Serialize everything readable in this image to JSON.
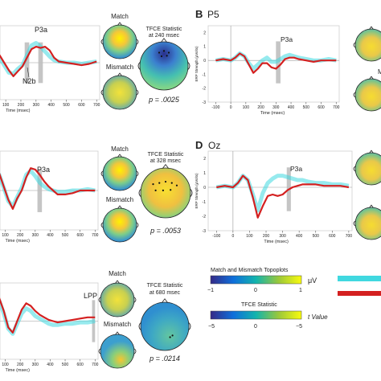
{
  "colors": {
    "match": "#40d8e0",
    "mismatch": "#d42020",
    "axis": "#555555",
    "text": "#222222",
    "gray_window": "#bbbbbb",
    "head_outline": "#222222"
  },
  "labels": {
    "match": "Match",
    "mismatch": "Mismatch",
    "p3a": "P3a",
    "n2b": "N2b",
    "lpp": "LPP",
    "x_label": "Time (msec)",
    "y_label": "ERP Strength (μVolts)",
    "panel_b_letter": "B",
    "panel_b_channel": "P5",
    "panel_d_letter": "D",
    "panel_d_channel": "Oz",
    "tfce_title_1": "TFCE Statistic",
    "tfce_time_1": "at 240 msec",
    "tfce_p_1": "p = .0025",
    "tfce_title_2": "TFCE Statistic",
    "tfce_time_2": "at 328 msec",
    "tfce_p_2": "p = .0053",
    "tfce_title_3": "TFCE Statistic",
    "tfce_time_3": "at 680 msec",
    "tfce_p_3": "p = .0214"
  },
  "legend": {
    "topo_title": "Match and Mismatch Topoplots",
    "topo_ticks": [
      "−1",
      "0",
      "1"
    ],
    "topo_unit": "μV",
    "tfce_title": "TFCE Statistic",
    "tfce_ticks": [
      "−5",
      "0",
      "−5"
    ],
    "tfce_unit": "t Value"
  },
  "chart_data": [
    {
      "type": "line",
      "panel": "A (cropped)",
      "x": [
        -100,
        -50,
        0,
        30,
        60,
        90,
        120,
        150,
        180,
        210,
        240,
        270,
        300,
        330,
        360,
        390,
        420,
        450,
        500,
        550,
        600,
        650,
        700
      ],
      "series": [
        {
          "name": "Match",
          "values": [
            0.0,
            0.1,
            0.0,
            0.3,
            0.4,
            -0.2,
            -0.8,
            -0.9,
            -0.5,
            -0.2,
            0.6,
            1.4,
            1.6,
            1.3,
            0.9,
            0.5,
            0.2,
            0.1,
            0.0,
            0.0,
            -0.1,
            0.0,
            0.1
          ]
        },
        {
          "name": "Mismatch",
          "values": [
            0.0,
            0.1,
            0.0,
            0.4,
            0.6,
            0.0,
            -0.6,
            -1.1,
            -0.7,
            -0.3,
            0.4,
            1.1,
            1.3,
            1.2,
            1.3,
            1.0,
            0.4,
            0.1,
            0.0,
            -0.1,
            -0.2,
            -0.1,
            0.1
          ]
        }
      ],
      "x_ticks": [
        100,
        200,
        300,
        400,
        500,
        600,
        700
      ],
      "windows": [
        [
          225,
          255
        ],
        [
          315,
          345
        ]
      ],
      "xlim": [
        -150,
        720
      ],
      "ylim": [
        -3,
        3
      ]
    },
    {
      "type": "line",
      "panel": "B",
      "x": [
        -100,
        -50,
        0,
        30,
        60,
        90,
        120,
        150,
        180,
        210,
        240,
        270,
        300,
        330,
        360,
        390,
        420,
        450,
        500,
        550,
        600,
        650,
        700
      ],
      "series": [
        {
          "name": "Match",
          "values": [
            0.0,
            0.1,
            0.0,
            0.2,
            0.5,
            0.3,
            -0.2,
            -0.6,
            -0.3,
            0.0,
            0.2,
            -0.1,
            -0.1,
            0.1,
            0.3,
            0.4,
            0.3,
            0.2,
            0.1,
            0.0,
            0.0,
            0.1,
            0.0
          ]
        },
        {
          "name": "Mismatch",
          "values": [
            0.0,
            0.1,
            0.0,
            0.2,
            0.5,
            0.3,
            -0.3,
            -0.9,
            -0.6,
            -0.2,
            -0.2,
            -0.5,
            -0.6,
            -0.3,
            0.1,
            0.2,
            0.2,
            0.1,
            0.0,
            -0.1,
            0.0,
            0.0,
            0.0
          ]
        }
      ],
      "x_ticks": [
        -100,
        0,
        100,
        200,
        300,
        400,
        500,
        600,
        700
      ],
      "y_ticks": [
        -3,
        -2,
        -1,
        0,
        1,
        2
      ],
      "windows": [
        [
          300,
          330
        ]
      ],
      "xlim": [
        -150,
        720
      ],
      "ylim": [
        -3,
        2.5
      ]
    },
    {
      "type": "line",
      "panel": "C (cropped)",
      "x": [
        -100,
        -50,
        0,
        30,
        60,
        90,
        120,
        150,
        180,
        210,
        240,
        270,
        300,
        330,
        360,
        390,
        420,
        450,
        500,
        550,
        600,
        650,
        700
      ],
      "series": [
        {
          "name": "Match",
          "values": [
            0.0,
            0.2,
            0.0,
            0.8,
            1.2,
            0.2,
            -0.8,
            -1.2,
            -0.5,
            0.2,
            1.2,
            1.5,
            1.1,
            0.6,
            0.3,
            0.1,
            0.0,
            -0.1,
            -0.1,
            0.0,
            0.0,
            0.1,
            0.0
          ]
        },
        {
          "name": "Mismatch",
          "values": [
            0.0,
            0.2,
            0.0,
            0.9,
            1.3,
            0.3,
            -0.7,
            -1.4,
            -0.6,
            0.0,
            1.0,
            1.7,
            1.6,
            1.2,
            0.7,
            0.3,
            0.0,
            -0.3,
            -0.3,
            -0.2,
            0.0,
            0.0,
            0.0
          ]
        }
      ],
      "x_ticks": [
        100,
        200,
        300,
        400,
        500,
        600,
        700
      ],
      "windows": [
        [
          315,
          345
        ]
      ],
      "xlim": [
        -150,
        720
      ],
      "ylim": [
        -3,
        3
      ]
    },
    {
      "type": "line",
      "panel": "D",
      "x": [
        -100,
        -50,
        0,
        30,
        60,
        90,
        120,
        150,
        180,
        210,
        240,
        270,
        300,
        330,
        360,
        390,
        420,
        450,
        500,
        550,
        600,
        650,
        700
      ],
      "series": [
        {
          "name": "Match",
          "values": [
            0.0,
            0.1,
            0.0,
            0.3,
            0.8,
            0.5,
            -0.5,
            -1.6,
            -0.4,
            0.3,
            0.6,
            0.8,
            0.8,
            0.7,
            0.6,
            0.5,
            0.5,
            0.4,
            0.3,
            0.3,
            0.2,
            0.2,
            0.1
          ]
        },
        {
          "name": "Mismatch",
          "values": [
            0.0,
            0.1,
            0.0,
            0.3,
            0.8,
            0.5,
            -0.7,
            -2.1,
            -1.3,
            -0.6,
            -0.5,
            -0.6,
            -0.5,
            -0.2,
            0.0,
            0.1,
            0.2,
            0.2,
            0.2,
            0.1,
            0.1,
            0.1,
            0.0
          ]
        }
      ],
      "x_ticks": [
        -100,
        0,
        100,
        200,
        300,
        400,
        500,
        600,
        700
      ],
      "y_ticks": [
        -3,
        -2,
        -1,
        0,
        1,
        2
      ],
      "windows": [
        [
          325,
          350
        ]
      ],
      "xlim": [
        -150,
        720
      ],
      "ylim": [
        -3,
        2.5
      ]
    },
    {
      "type": "line",
      "panel": "E (cropped)",
      "x": [
        -100,
        -50,
        0,
        30,
        60,
        90,
        120,
        150,
        180,
        210,
        240,
        270,
        300,
        330,
        360,
        390,
        420,
        450,
        500,
        550,
        600,
        650,
        700
      ],
      "series": [
        {
          "name": "Match",
          "values": [
            0.0,
            0.2,
            0.0,
            1.0,
            1.6,
            0.6,
            -0.6,
            -1.0,
            -0.2,
            0.6,
            1.0,
            0.8,
            0.4,
            0.2,
            0.0,
            -0.2,
            -0.3,
            -0.3,
            -0.2,
            -0.2,
            -0.1,
            -0.1,
            0.0
          ]
        },
        {
          "name": "Mismatch",
          "values": [
            0.0,
            0.2,
            0.0,
            1.1,
            1.8,
            0.8,
            -0.5,
            -0.9,
            0.0,
            0.9,
            1.4,
            1.2,
            0.8,
            0.5,
            0.3,
            0.1,
            0.0,
            -0.1,
            0.0,
            0.1,
            0.2,
            0.3,
            0.3
          ]
        }
      ],
      "x_ticks": [
        100,
        200,
        300,
        400,
        500,
        600,
        700
      ],
      "windows": [
        [
          680,
          700
        ]
      ],
      "xlim": [
        -150,
        720
      ],
      "ylim": [
        -3,
        3
      ]
    }
  ]
}
